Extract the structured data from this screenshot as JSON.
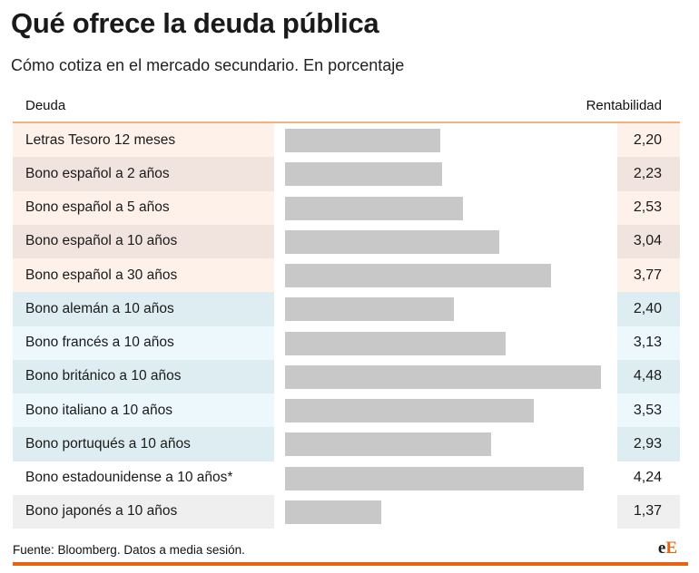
{
  "title": "Qué ofrece la deuda pública",
  "subtitle": "Cómo cotiza en el mercado secundario. En porcentaje",
  "table": {
    "header_left": "Deuda",
    "header_right": "Rentabilidad"
  },
  "chart_data": {
    "type": "bar",
    "orientation": "horizontal",
    "categories": [
      "Letras Tesoro 12 meses",
      "Bono español a 2 años",
      "Bono español a 5 años",
      "Bono español a 10 años",
      "Bono español a 30 años",
      "Bono alemán a 10 años",
      "Bono francés a 10 años",
      "Bono británico a 10 años",
      "Bono italiano a 10 años",
      "Bono portuqués a 10 años",
      "Bono estadounidense a 10 años*",
      "Bono japonés a 10 años"
    ],
    "values": [
      2.2,
      2.23,
      2.53,
      3.04,
      3.77,
      2.4,
      3.13,
      4.48,
      3.53,
      2.93,
      4.24,
      1.37
    ],
    "value_labels": [
      "2,20",
      "2,23",
      "2,53",
      "3,04",
      "3,77",
      "2,40",
      "3,13",
      "4,48",
      "3,53",
      "2,93",
      "4,24",
      "1,37"
    ],
    "row_backgrounds": [
      "#fdf1ea",
      "#f1e4df",
      "#fdf1ea",
      "#f1e4df",
      "#fdf1ea",
      "#deedf1",
      "#ecf8fc",
      "#deedf1",
      "#ecf8fc",
      "#deedf1",
      "#ffffff",
      "#efefef"
    ],
    "bar_color": "#c8c8c8",
    "xlim": [
      0,
      4.6
    ]
  },
  "footer": {
    "source": "Fuente: Bloomberg. Datos a media sesión.",
    "logo_e1": "e",
    "logo_e2": "E"
  },
  "colors": {
    "accent": "#e8620f",
    "header_rule": "#f3b07a"
  }
}
